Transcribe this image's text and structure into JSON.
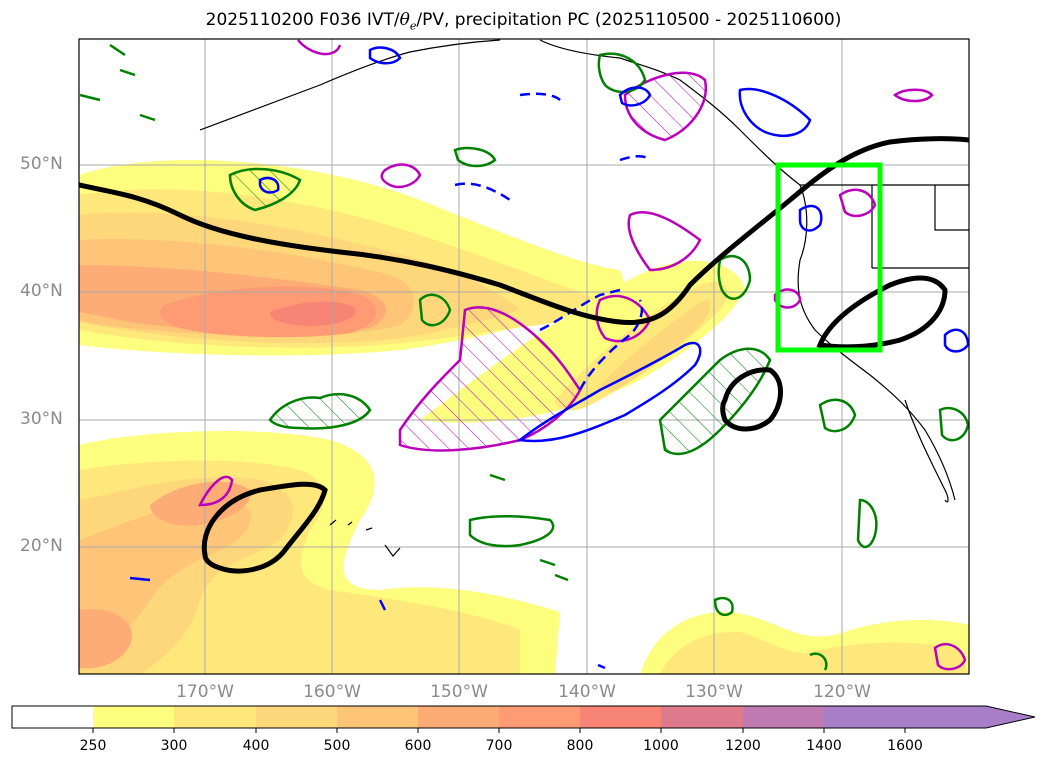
{
  "title": {
    "prefix": "2025110200 F036 IVT/",
    "theta": "θ",
    "sub": "e",
    "suffix": "/PV, precipitation PC (2025110500 - 2025110600)"
  },
  "axes": {
    "lat_labels": [
      "50°N",
      "40°N",
      "30°N",
      "20°N"
    ],
    "lon_labels": [
      "170°W",
      "160°W",
      "150°W",
      "140°W",
      "130°W",
      "120°W"
    ]
  },
  "colorbar": {
    "ticks": [
      "250",
      "300",
      "400",
      "500",
      "600",
      "700",
      "800",
      "1000",
      "1200",
      "1400",
      "1600"
    ],
    "colors": [
      "#ffffff",
      "#fefe7e",
      "#fee87c",
      "#fed77a",
      "#fec477",
      "#feac75",
      "#fe9a74",
      "#f78475",
      "#de7a8c",
      "#c07ab2",
      "#a87ec8"
    ]
  },
  "legend_colors": {
    "theta_e": "#000000",
    "pv_positive": "#008000",
    "pv_negative": "#0000ff",
    "pv_magenta": "#bb00bb",
    "region_box": "#00ff00"
  }
}
